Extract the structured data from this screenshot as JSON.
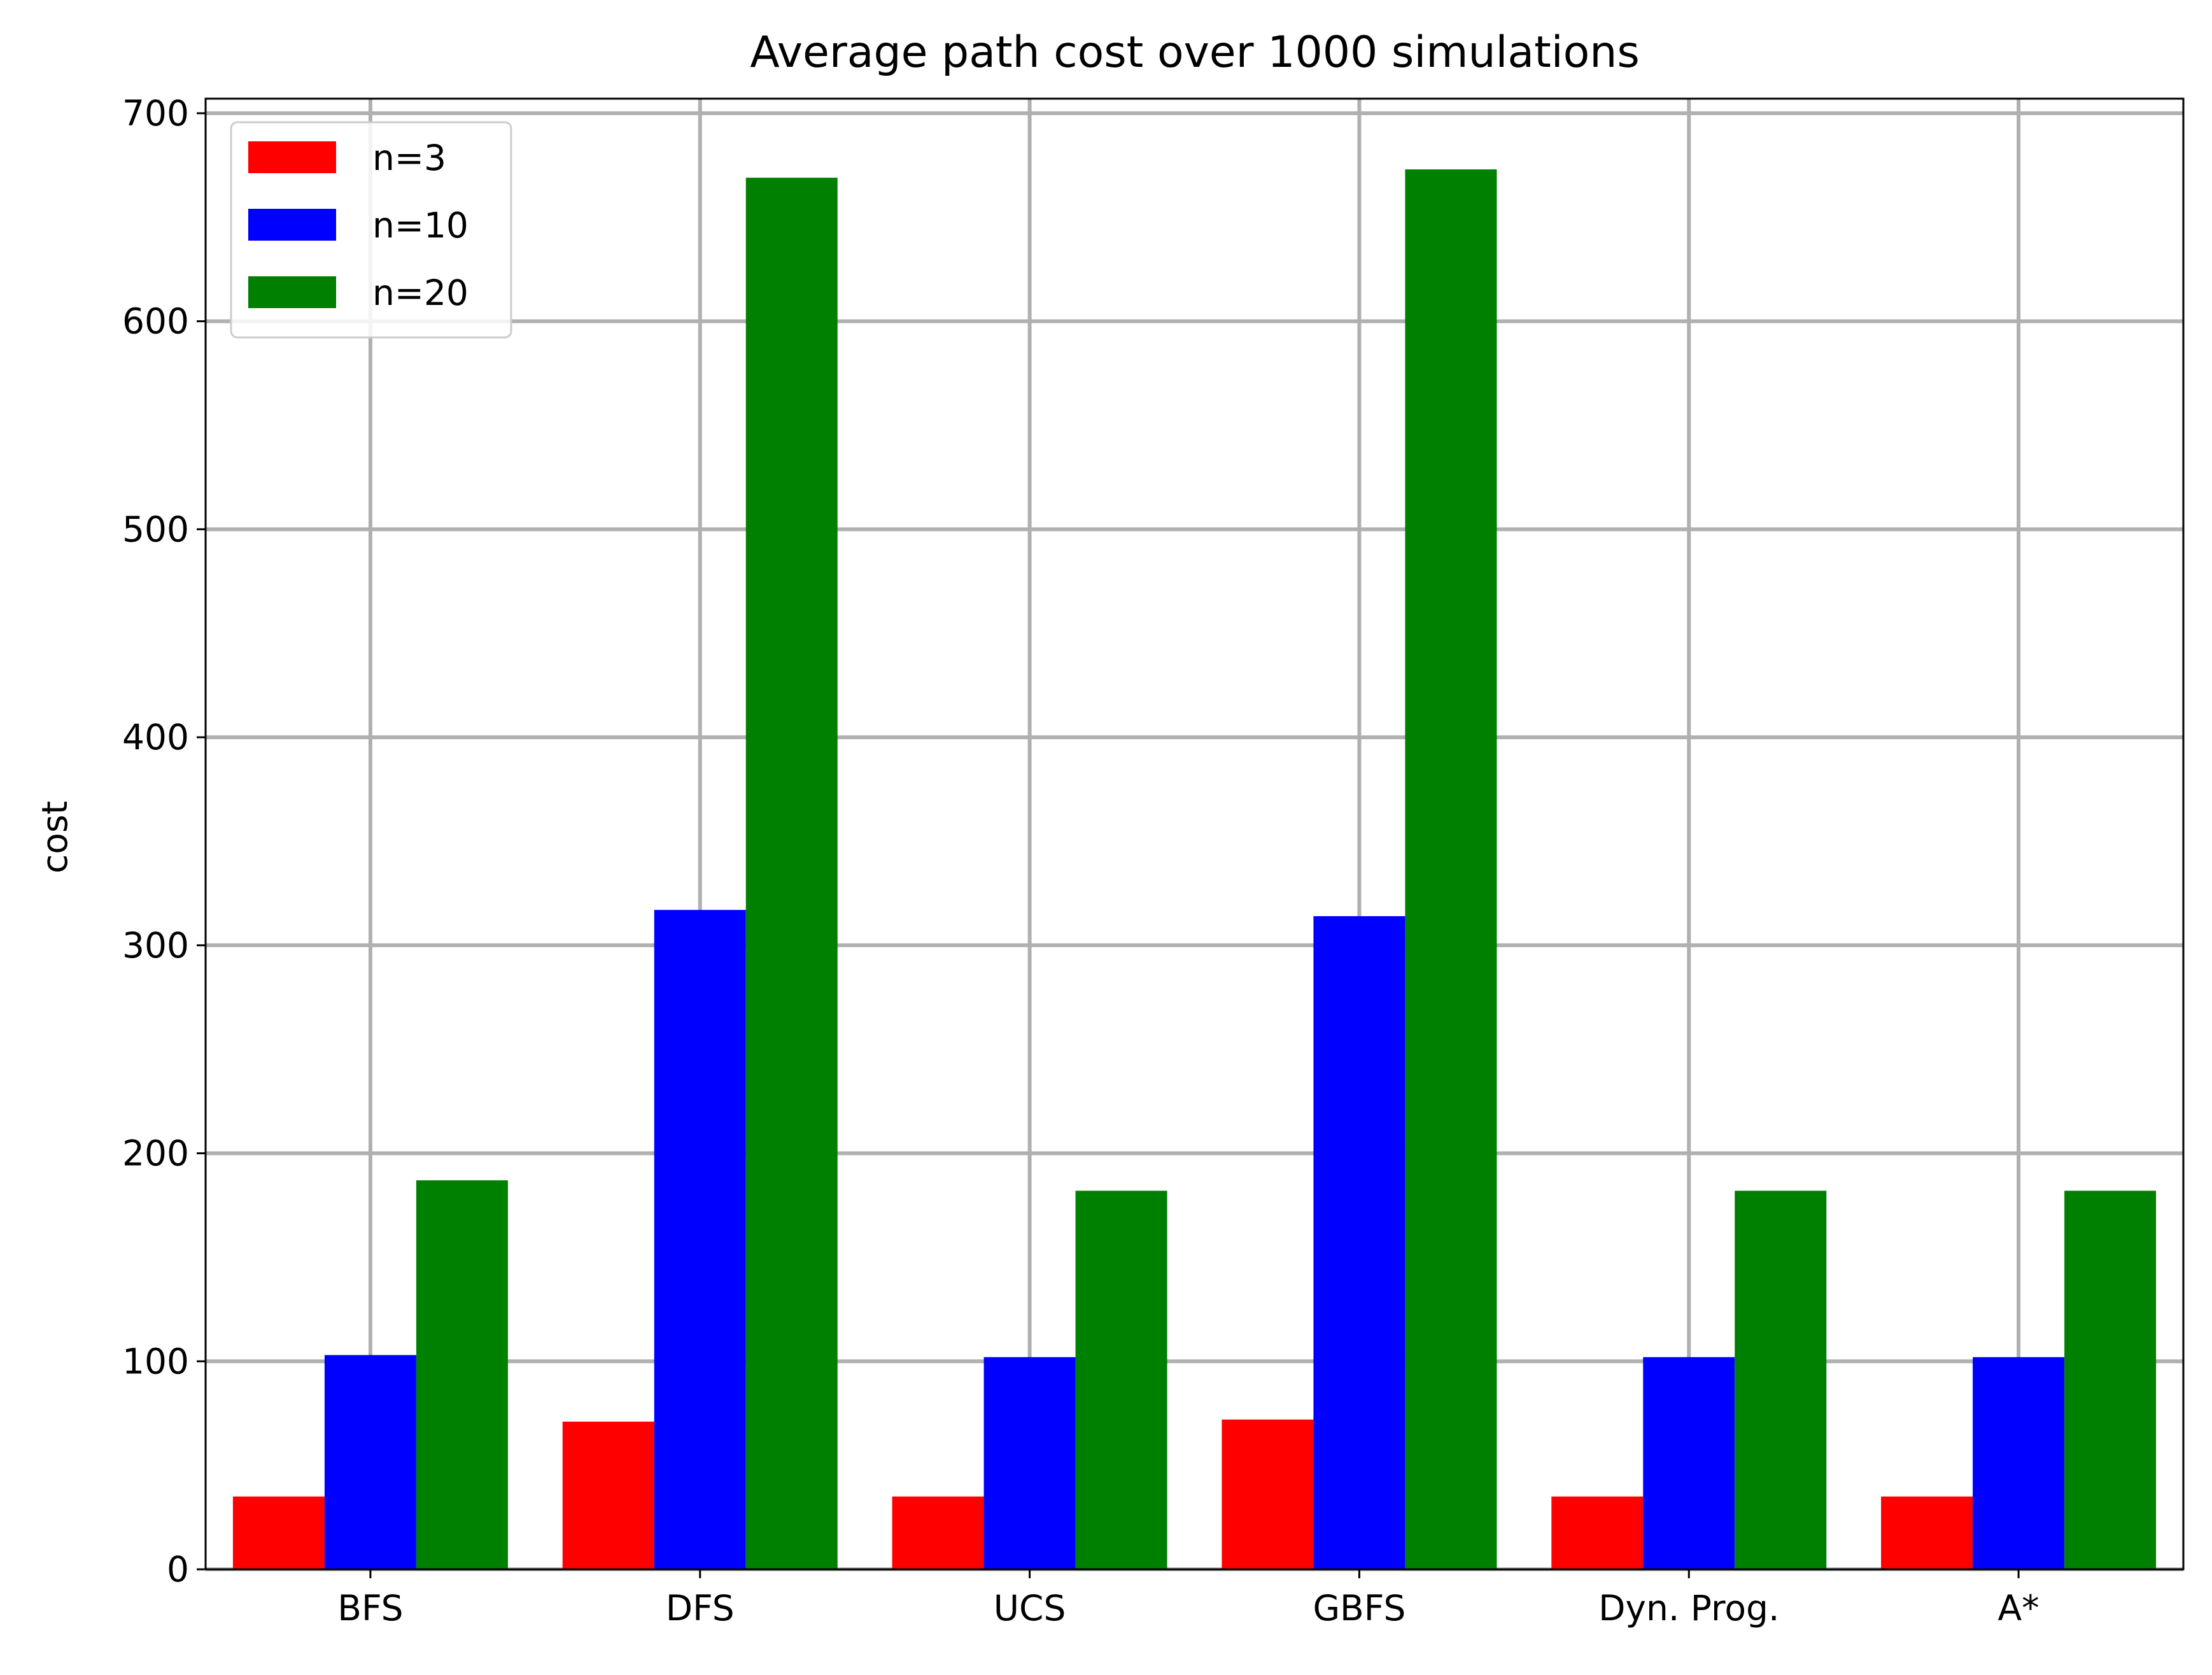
{
  "chart_data": {
    "type": "bar",
    "title": "Average path cost over 1000 simulations",
    "xlabel": "",
    "ylabel": "cost",
    "categories": [
      "BFS",
      "DFS",
      "UCS",
      "GBFS",
      "Dyn. Prog.",
      "A*"
    ],
    "series": [
      {
        "name": "n=3",
        "color": "#ff0000",
        "values": [
          35,
          71,
          35,
          72,
          35,
          35
        ]
      },
      {
        "name": "n=10",
        "color": "#0000ff",
        "values": [
          103,
          317,
          102,
          314,
          102,
          102
        ]
      },
      {
        "name": "n=20",
        "color": "#008000",
        "values": [
          187,
          669,
          182,
          673,
          182,
          182
        ]
      }
    ],
    "ylim": [
      0,
      707
    ],
    "yticks": [
      0,
      100,
      200,
      300,
      400,
      500,
      600,
      700
    ],
    "grid": true,
    "legend_position": "upper-left"
  }
}
